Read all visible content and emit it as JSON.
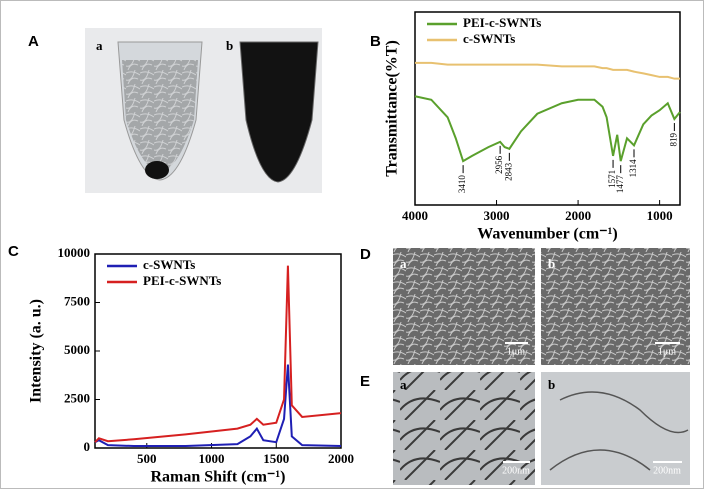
{
  "figure": {
    "panels": [
      {
        "label": "A",
        "sub_labels": [
          "a",
          "b"
        ]
      },
      {
        "label": "B"
      },
      {
        "label": "C"
      },
      {
        "label": "D",
        "sub_labels": [
          "a",
          "b"
        ],
        "scale_bars": [
          "1μm",
          "1μm"
        ]
      },
      {
        "label": "E",
        "sub_labels": [
          "a",
          "b"
        ],
        "scale_bars": [
          "200nm",
          "200nm"
        ]
      }
    ]
  },
  "chart_data": [
    {
      "type": "line",
      "x_label": "Wavenumber (cm⁻¹)",
      "y_label": "Transmittance(%T)",
      "x": [
        4000,
        3800,
        3600,
        3500,
        3410,
        3300,
        3100,
        2956,
        2900,
        2843,
        2700,
        2500,
        2200,
        2000,
        1800,
        1700,
        1650,
        1571,
        1520,
        1477,
        1400,
        1314,
        1200,
        1100,
        1000,
        900,
        819,
        750
      ],
      "series": [
        {
          "name": "PEI-c-SWNTs",
          "color": "#5aa02c",
          "values": [
            62,
            60,
            50,
            38,
            25,
            28,
            33,
            36,
            33,
            32,
            42,
            52,
            58,
            60,
            60,
            56,
            50,
            28,
            40,
            25,
            38,
            34,
            46,
            51,
            54,
            58,
            49,
            53
          ]
        },
        {
          "name": "c-SWNTs",
          "color": "#e8c170",
          "values": [
            81,
            81,
            80,
            80,
            80,
            80,
            80,
            80,
            80,
            80,
            80,
            80,
            79,
            79,
            79,
            78,
            78,
            77,
            77,
            77,
            77,
            76,
            75,
            74,
            73,
            73,
            72,
            72
          ]
        }
      ],
      "xlim": [
        4000,
        750
      ],
      "ylim": [
        0,
        110
      ],
      "xticks": [
        4000,
        3000,
        2000,
        1000
      ],
      "peak_labels": [
        3410,
        2956,
        2843,
        1571,
        1477,
        1314,
        819
      ],
      "legend": "upper left"
    },
    {
      "type": "line",
      "x_label": "Raman Shift (cm⁻¹)",
      "y_label": "Intensity (a. u.)",
      "x": [
        100,
        130,
        200,
        400,
        800,
        1200,
        1300,
        1350,
        1400,
        1500,
        1560,
        1590,
        1620,
        1700,
        2000
      ],
      "series": [
        {
          "name": "c-SWNTs",
          "color": "#1f1fb4",
          "values": [
            300,
            400,
            150,
            100,
            100,
            200,
            600,
            1000,
            400,
            300,
            1500,
            4300,
            600,
            150,
            100
          ]
        },
        {
          "name": "PEI-c-SWNTs",
          "color": "#d62020",
          "values": [
            300,
            500,
            350,
            450,
            700,
            1000,
            1200,
            1500,
            1200,
            1300,
            2500,
            9400,
            2200,
            1600,
            1800
          ]
        }
      ],
      "xlim": [
        100,
        2000
      ],
      "ylim": [
        0,
        10000
      ],
      "xticks": [
        500,
        1000,
        1500,
        2000
      ],
      "yticks": [
        0,
        2500,
        5000,
        7500,
        10000
      ],
      "legend": "upper left"
    }
  ]
}
